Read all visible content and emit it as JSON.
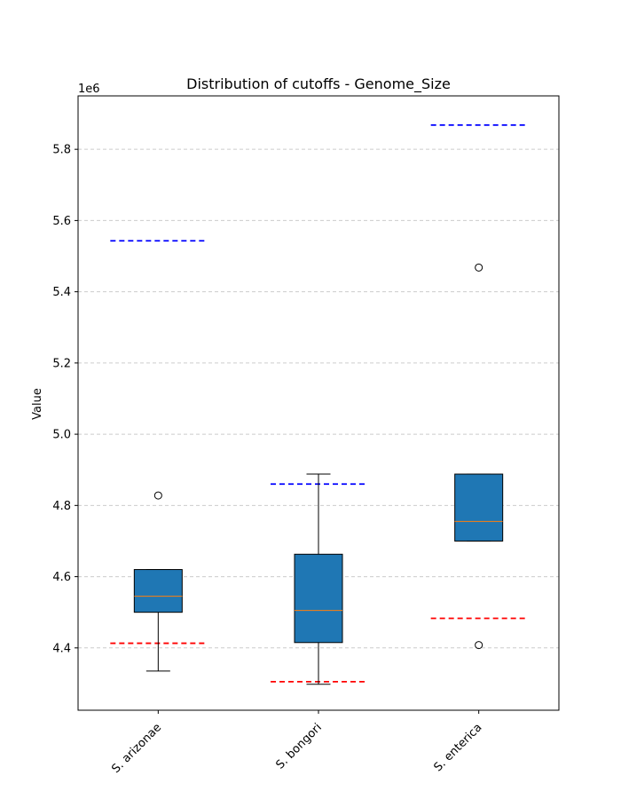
{
  "chart_data": {
    "type": "box",
    "title": "Distribution of cutoffs - Genome_Size",
    "ylabel": "Value",
    "xlabel": "",
    "y_offset_label": "1e6",
    "y_scale_factor": 1000000,
    "ylim": [
      4.225,
      5.95
    ],
    "yticks": [
      4.4,
      4.6,
      4.8,
      5.0,
      5.2,
      5.4,
      5.6,
      5.8
    ],
    "ytick_labels": [
      "4.4",
      "4.6",
      "4.8",
      "5.0",
      "5.2",
      "5.4",
      "5.6",
      "5.8"
    ],
    "grid": "horizontal-dashed",
    "categories": [
      "S. arizonae",
      "S. bongori",
      "S. enterica"
    ],
    "boxes": [
      {
        "name": "S. arizonae",
        "whisker_low": 4.335,
        "q1": 4.5,
        "median": 4.545,
        "q3": 4.62,
        "whisker_high": 4.62,
        "outliers": [
          4.828
        ],
        "lower_cutoff": 4.413,
        "upper_cutoff": 5.543
      },
      {
        "name": "S. bongori",
        "whisker_low": 4.298,
        "q1": 4.415,
        "median": 4.505,
        "q3": 4.663,
        "whisker_high": 4.888,
        "outliers": [],
        "lower_cutoff": 4.305,
        "upper_cutoff": 4.86
      },
      {
        "name": "S. enterica",
        "whisker_low": 4.7,
        "q1": 4.7,
        "median": 4.755,
        "q3": 4.888,
        "whisker_high": 4.888,
        "outliers": [
          5.468,
          4.408
        ],
        "lower_cutoff": 4.483,
        "upper_cutoff": 5.868
      }
    ],
    "colors": {
      "box_fill": "#1f77b4",
      "median": "#ff7f0e",
      "lower_cutoff": "#ff0000",
      "upper_cutoff": "#0000ff",
      "grid": "#cccccc"
    }
  }
}
